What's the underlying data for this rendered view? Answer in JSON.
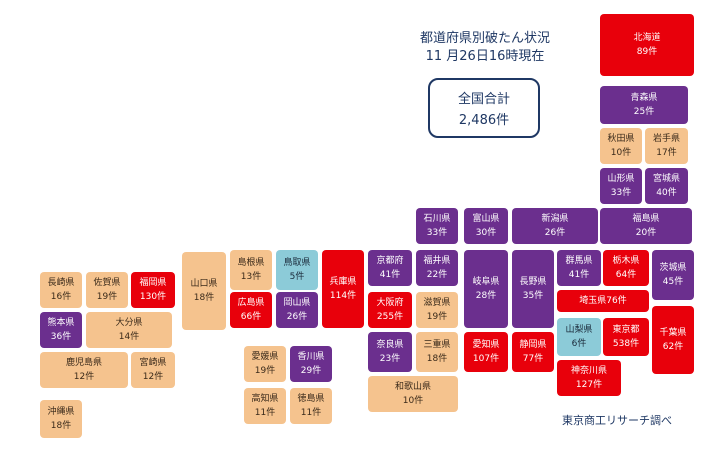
{
  "header": {
    "title_line1": "都道府県別破たん状況",
    "title_line2": "11 月26日16時現在"
  },
  "total": {
    "label": "全国合計",
    "value": "2,486件"
  },
  "credit": "東京商工リサーチ調べ",
  "colors": {
    "red": "#e8000b",
    "purple": "#6b2f8e",
    "tan": "#f5c38e",
    "blue": "#8ccbd8"
  },
  "prefectures": [
    {
      "name": "北海道",
      "count": "89件",
      "color": "red"
    },
    {
      "name": "青森県",
      "count": "25件",
      "color": "purple"
    },
    {
      "name": "秋田県",
      "count": "10件",
      "color": "tan"
    },
    {
      "name": "岩手県",
      "count": "17件",
      "color": "tan"
    },
    {
      "name": "山形県",
      "count": "33件",
      "color": "purple"
    },
    {
      "name": "宮城県",
      "count": "40件",
      "color": "purple"
    },
    {
      "name": "福島県",
      "count": "20件",
      "color": "purple"
    },
    {
      "name": "新潟県",
      "count": "26件",
      "color": "purple"
    },
    {
      "name": "石川県",
      "count": "33件",
      "color": "purple"
    },
    {
      "name": "富山県",
      "count": "30件",
      "color": "purple"
    },
    {
      "name": "長野県",
      "count": "35件",
      "color": "purple"
    },
    {
      "name": "群馬県",
      "count": "41件",
      "color": "purple"
    },
    {
      "name": "栃木県",
      "count": "64件",
      "color": "red"
    },
    {
      "name": "茨城県",
      "count": "45件",
      "color": "purple"
    },
    {
      "name": "埼玉県",
      "count": "76件",
      "color": "red"
    },
    {
      "name": "山梨県",
      "count": "6件",
      "color": "blue"
    },
    {
      "name": "東京都",
      "count": "538件",
      "color": "red"
    },
    {
      "name": "千葉県",
      "count": "62件",
      "color": "red"
    },
    {
      "name": "神奈川県",
      "count": "127件",
      "color": "red"
    },
    {
      "name": "静岡県",
      "count": "77件",
      "color": "red"
    },
    {
      "name": "愛知県",
      "count": "107件",
      "color": "red"
    },
    {
      "name": "岐阜県",
      "count": "28件",
      "color": "purple"
    },
    {
      "name": "福井県",
      "count": "22件",
      "color": "purple"
    },
    {
      "name": "滋賀県",
      "count": "19件",
      "color": "tan"
    },
    {
      "name": "三重県",
      "count": "18件",
      "color": "tan"
    },
    {
      "name": "京都府",
      "count": "41件",
      "color": "purple"
    },
    {
      "name": "大阪府",
      "count": "255件",
      "color": "red"
    },
    {
      "name": "奈良県",
      "count": "23件",
      "color": "purple"
    },
    {
      "name": "和歌山県",
      "count": "10件",
      "color": "tan"
    },
    {
      "name": "兵庫県",
      "count": "114件",
      "color": "red"
    },
    {
      "name": "鳥取県",
      "count": "5件",
      "color": "blue"
    },
    {
      "name": "岡山県",
      "count": "26件",
      "color": "purple"
    },
    {
      "name": "島根県",
      "count": "13件",
      "color": "tan"
    },
    {
      "name": "広島県",
      "count": "66件",
      "color": "red"
    },
    {
      "name": "山口県",
      "count": "18件",
      "color": "tan"
    },
    {
      "name": "香川県",
      "count": "29件",
      "color": "purple"
    },
    {
      "name": "愛媛県",
      "count": "19件",
      "color": "tan"
    },
    {
      "name": "徳島県",
      "count": "11件",
      "color": "tan"
    },
    {
      "name": "高知県",
      "count": "11件",
      "color": "tan"
    },
    {
      "name": "福岡県",
      "count": "130件",
      "color": "red"
    },
    {
      "name": "佐賀県",
      "count": "19件",
      "color": "tan"
    },
    {
      "name": "長崎県",
      "count": "16件",
      "color": "tan"
    },
    {
      "name": "熊本県",
      "count": "36件",
      "color": "purple"
    },
    {
      "name": "大分県",
      "count": "14件",
      "color": "tan"
    },
    {
      "name": "宮崎県",
      "count": "12件",
      "color": "tan"
    },
    {
      "name": "鹿児島県",
      "count": "12件",
      "color": "tan"
    },
    {
      "name": "沖縄県",
      "count": "18件",
      "color": "tan"
    }
  ]
}
